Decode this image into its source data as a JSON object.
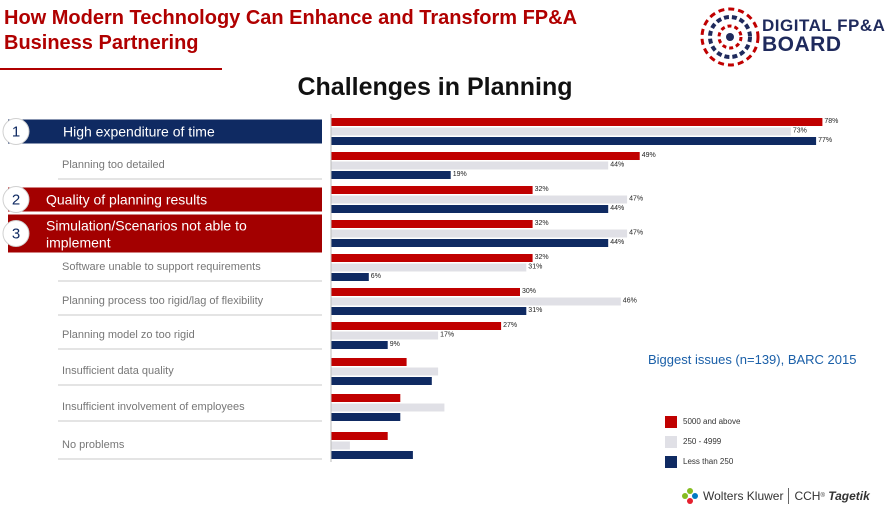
{
  "slide": {
    "title": "How Modern Technology Can Enhance and Transform FP&A\nBusiness Partnering",
    "logo_line1": "DIGITAL FP&A",
    "logo_line2": "BOARD",
    "source": "Biggest issues (n=139), BARC 2015",
    "footer_company": "Wolters Kluwer",
    "footer_product": "CCH",
    "footer_brand": "Tagetik"
  },
  "colors": {
    "red": "#c00000",
    "gray": "#e0e0e6",
    "navy": "#0f2a62",
    "highlight_red": "#a30000",
    "highlight_navy": "#0f2a62"
  },
  "chart_data": {
    "type": "bar",
    "orientation": "horizontal",
    "title": "Challenges in Planning",
    "xlim": [
      0,
      80
    ],
    "categories": [
      "High expenditure of time",
      "Planning too detailed",
      "Quality of planning results",
      "Simulation/Scenarios not able to implement",
      "Software unable to support requirements",
      "Planning process too rigid/lag of flexibility",
      "Planning model zo too rigid",
      "Insufficient data quality",
      "Insufficient involvement of employees",
      "No problems"
    ],
    "highlights": [
      {
        "rank": "1",
        "category_index": 0,
        "color": "navy"
      },
      {
        "rank": "2",
        "category_index": 2,
        "color": "red"
      },
      {
        "rank": "3",
        "category_index": 3,
        "color": "red"
      }
    ],
    "series": [
      {
        "name": "5000 and above",
        "color": "#c00000",
        "values": [
          78,
          49,
          32,
          32,
          32,
          30,
          27,
          12,
          11,
          9
        ],
        "labels": [
          "78%",
          "49%",
          "32%",
          "32%",
          "32%",
          "30%",
          "27%",
          "",
          "",
          ""
        ]
      },
      {
        "name": "250 - 4999",
        "color": "#e0e0e6",
        "values": [
          73,
          44,
          47,
          47,
          31,
          46,
          17,
          17,
          18,
          3
        ],
        "labels": [
          "73%",
          "44%",
          "47%",
          "47%",
          "31%",
          "46%",
          "17%",
          "",
          "",
          ""
        ]
      },
      {
        "name": "Less than 250",
        "color": "#0f2a62",
        "values": [
          77,
          19,
          44,
          44,
          6,
          31,
          9,
          16,
          11,
          13
        ],
        "labels": [
          "77%",
          "19%",
          "44%",
          "44%",
          "6%",
          "31%",
          "9%",
          "",
          "",
          ""
        ]
      }
    ],
    "legend_position": "right"
  }
}
